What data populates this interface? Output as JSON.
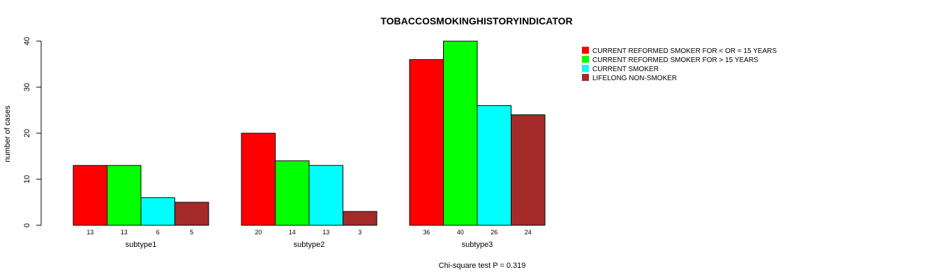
{
  "chart_data": {
    "type": "bar",
    "title": "TOBACCOSMOKINGHISTORYINDICATOR",
    "xlabel": "",
    "ylabel": "number of cases",
    "ylim": [
      0,
      40
    ],
    "yticks": [
      0,
      10,
      20,
      30,
      40
    ],
    "categories": [
      "subtype1",
      "subtype2",
      "subtype3"
    ],
    "series": [
      {
        "name": "CURRENT REFORMED SMOKER FOR < OR = 15 YEARS",
        "color": "#ff0000",
        "values": [
          13,
          20,
          36
        ]
      },
      {
        "name": "CURRENT REFORMED SMOKER FOR > 15 YEARS",
        "color": "#00ff00",
        "values": [
          13,
          14,
          40
        ]
      },
      {
        "name": "CURRENT SMOKER",
        "color": "#00ffff",
        "values": [
          6,
          13,
          26
        ]
      },
      {
        "name": "LIFELONG NON-SMOKER",
        "color": "#a52a2a",
        "values": [
          5,
          3,
          24
        ]
      }
    ],
    "legend_position": "top-right",
    "grid": false,
    "footnote": "Chi-square test P = 0.319"
  }
}
